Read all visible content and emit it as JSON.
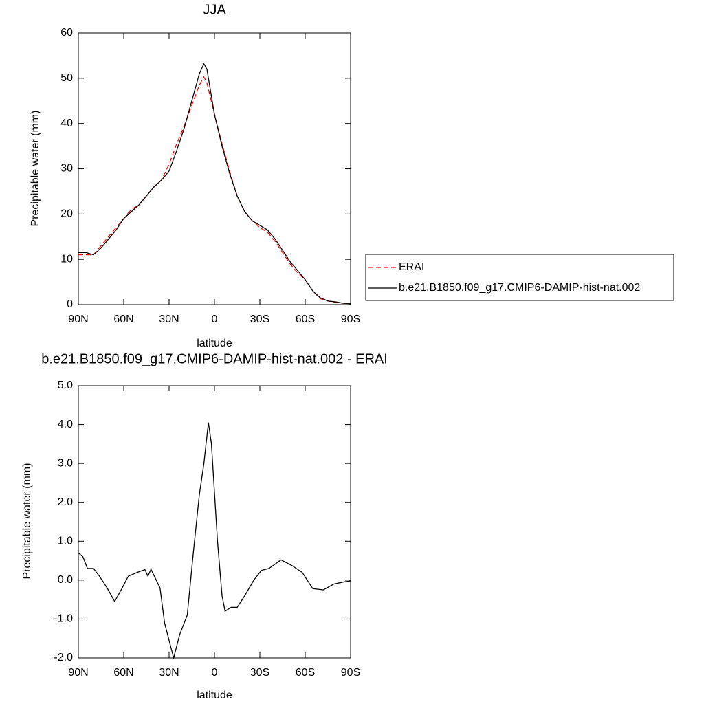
{
  "chart_data": [
    {
      "type": "line",
      "title": "JJA",
      "xlabel": "latitude",
      "ylabel": "Precipitable water (mm)",
      "x": [
        90,
        85,
        80,
        75,
        70,
        65,
        60,
        55,
        50,
        45,
        40,
        35,
        30,
        25,
        20,
        15,
        10,
        7,
        5,
        0,
        -5,
        -10,
        -15,
        -20,
        -25,
        -30,
        -35,
        -40,
        -45,
        -50,
        -55,
        -60,
        -65,
        -70,
        -75,
        -80,
        -85,
        -90
      ],
      "xlim": [
        90,
        -90
      ],
      "xticks": [
        {
          "value": 90,
          "label": "90N"
        },
        {
          "value": 60,
          "label": "60N"
        },
        {
          "value": 30,
          "label": "30N"
        },
        0,
        {
          "value": -30,
          "label": "30S"
        },
        {
          "value": -60,
          "label": "60S"
        },
        {
          "value": -90,
          "label": "90S"
        }
      ],
      "ylim": [
        0,
        60
      ],
      "yticks": [
        0,
        10,
        20,
        30,
        40,
        50,
        60
      ],
      "legend": "right",
      "series": [
        {
          "name": "ERAI",
          "color": "#ff0000",
          "line_style": "dashed",
          "values": [
            11,
            11,
            11,
            13,
            15,
            17,
            19,
            21,
            22,
            24,
            26,
            27.5,
            31,
            35.5,
            39.5,
            44,
            48.5,
            50.3,
            49,
            42,
            35.5,
            29.5,
            24,
            20.5,
            18.5,
            17,
            16,
            14,
            11.5,
            9,
            7,
            5.5,
            3,
            1.3,
            0.8,
            0.5,
            0.3,
            0.2
          ]
        },
        {
          "name": "b.e21.B1850.f09_g17.CMIP6-DAMIP-hist-nat.002",
          "color": "#000000",
          "line_style": "solid",
          "values": [
            11.5,
            11.5,
            11,
            12.5,
            14.5,
            16.5,
            19,
            20.5,
            22,
            24,
            26,
            27.5,
            29.5,
            34,
            39,
            45,
            51,
            53.2,
            52,
            42,
            35,
            29,
            24,
            20.5,
            18.5,
            17.5,
            16.5,
            14.5,
            12,
            9.5,
            7.5,
            5.5,
            3,
            1.5,
            0.8,
            0.6,
            0.3,
            0.2
          ]
        }
      ]
    },
    {
      "type": "line",
      "title": "b.e21.B1850.f09_g17.CMIP6-DAMIP-hist-nat.002 - ERAI",
      "xlabel": "latitude",
      "ylabel": "Precipitable water (mm)",
      "x": [
        90,
        87,
        84,
        80,
        76,
        71,
        66,
        61,
        57,
        51,
        46,
        44,
        42,
        36,
        33,
        27,
        23,
        18,
        14,
        10,
        7,
        4,
        2,
        -2,
        -5,
        -7,
        -11,
        -15,
        -20,
        -26,
        -31,
        -36,
        -44,
        -51,
        -58,
        -65,
        -72,
        -79,
        -85,
        -90
      ],
      "xlim": [
        90,
        -90
      ],
      "xticks": [
        {
          "value": 90,
          "label": "90N"
        },
        {
          "value": 60,
          "label": "60N"
        },
        {
          "value": 30,
          "label": "30N"
        },
        0,
        {
          "value": -30,
          "label": "30S"
        },
        {
          "value": -60,
          "label": "60S"
        },
        {
          "value": -90,
          "label": "90S"
        }
      ],
      "ylim": [
        -2,
        5
      ],
      "yticks": [
        {
          "value": -2,
          "label": "-2.0"
        },
        {
          "value": -1,
          "label": "-1.0"
        },
        {
          "value": 0,
          "label": "0.0"
        },
        {
          "value": 1,
          "label": "1.0"
        },
        {
          "value": 2,
          "label": "2.0"
        },
        {
          "value": 3,
          "label": "3.0"
        },
        {
          "value": 4,
          "label": "4.0"
        },
        {
          "value": 5,
          "label": "5.0"
        }
      ],
      "series": [
        {
          "color": "#000000",
          "line_style": "solid",
          "values": [
            0.7,
            0.6,
            0.3,
            0.3,
            0.1,
            -0.2,
            -0.55,
            -0.2,
            0.1,
            0.2,
            0.27,
            0.1,
            0.28,
            -0.2,
            -1.1,
            -2.0,
            -1.4,
            -0.9,
            0.7,
            2.2,
            3.0,
            4.05,
            3.5,
            1.0,
            -0.4,
            -0.8,
            -0.7,
            -0.7,
            -0.4,
            0.0,
            0.25,
            0.3,
            0.52,
            0.38,
            0.2,
            -0.22,
            -0.25,
            -0.1,
            -0.05,
            -0.02
          ]
        }
      ]
    }
  ]
}
